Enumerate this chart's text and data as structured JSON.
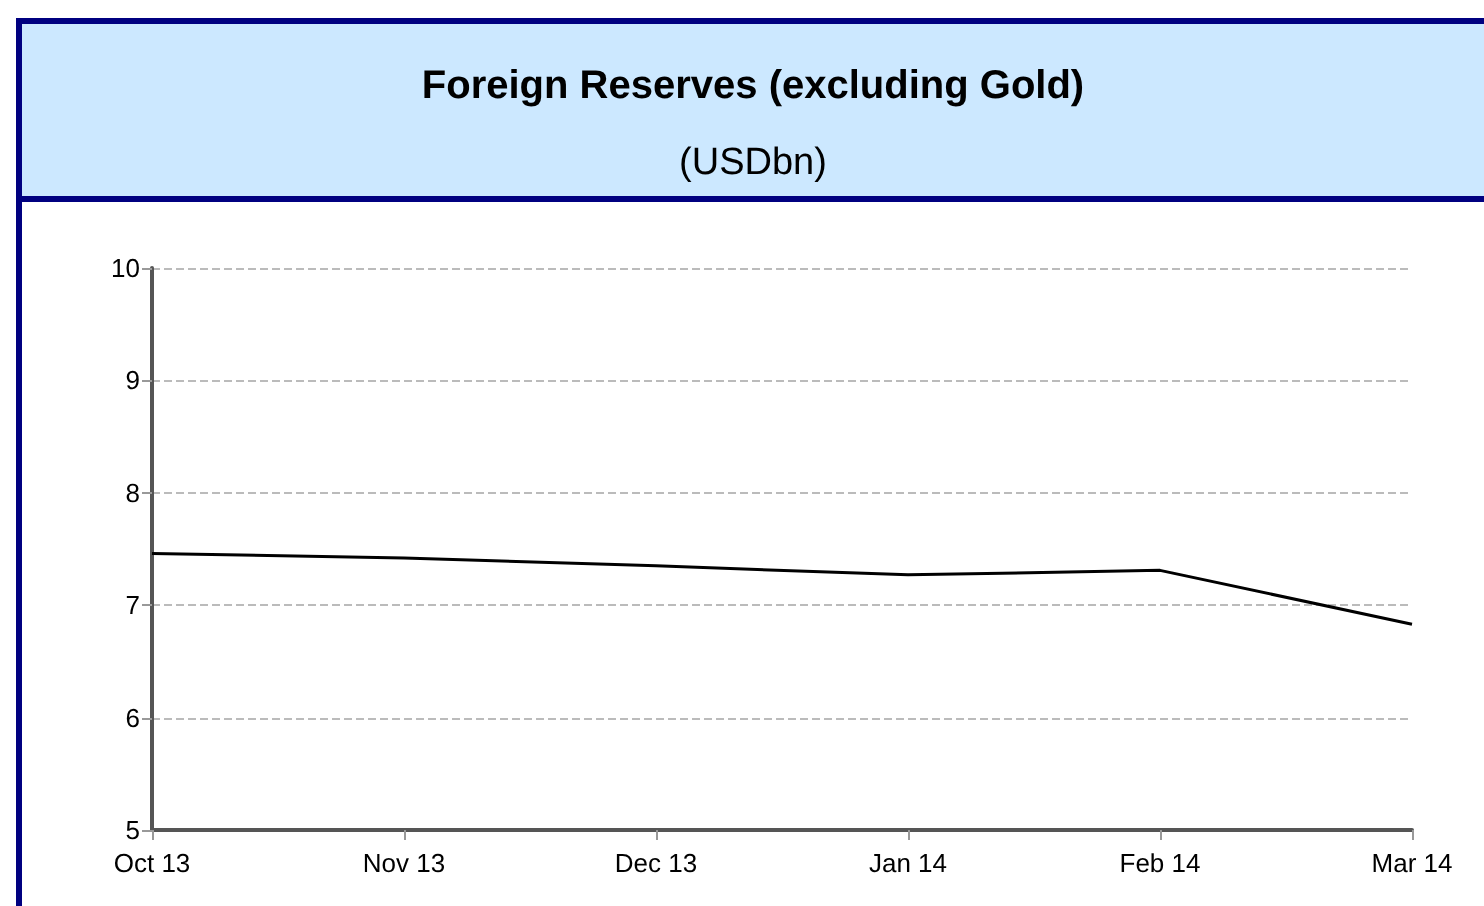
{
  "chart_data": {
    "type": "line",
    "title": "Foreign Reserves (excluding Gold)",
    "subtitle": "(USDbn)",
    "categories": [
      "Oct 13",
      "Nov 13",
      "Dec 13",
      "Jan 14",
      "Feb 14",
      "Mar 14"
    ],
    "series": [
      {
        "color": "#000000",
        "values": [
          7.46,
          7.42,
          7.35,
          7.27,
          7.31,
          6.83
        ]
      }
    ],
    "ylim": [
      5,
      10
    ],
    "yticks": [
      5,
      6,
      7,
      8,
      9,
      10
    ],
    "grid": "y",
    "marker": "none",
    "line_style": "solid"
  }
}
